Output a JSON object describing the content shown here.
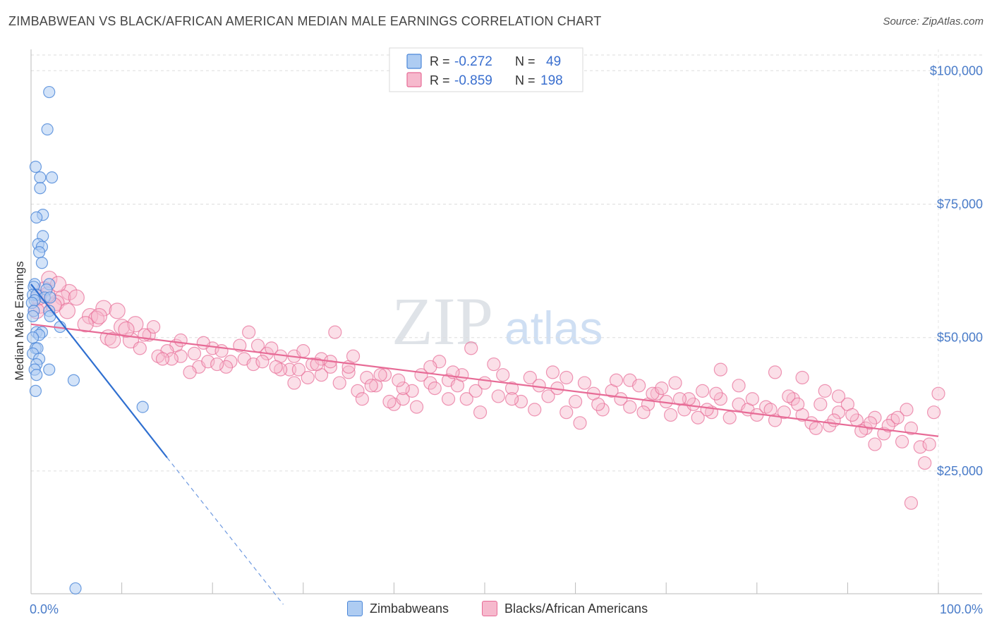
{
  "header": {
    "title": "ZIMBABWEAN VS BLACK/AFRICAN AMERICAN MEDIAN MALE EARNINGS CORRELATION CHART",
    "source": "Source: ZipAtlas.com"
  },
  "watermark": "ZIPatlas",
  "legend": {
    "rows": [
      {
        "r_label": "R = ",
        "r_value": "-0.272",
        "n_label": "N = ",
        "n_value": "49"
      },
      {
        "r_label": "R = ",
        "r_value": "-0.859",
        "n_label": "N = ",
        "n_value": "198"
      }
    ]
  },
  "bottom_legend": {
    "items": [
      "Zimbabweans",
      "Blacks/African Americans"
    ]
  },
  "chart_data": {
    "type": "scatter",
    "ylabel": "Median Male Earnings",
    "xlabel": "",
    "x_tick_labels": [
      "0.0%",
      "100.0%"
    ],
    "y_tick_labels": [
      "$25,000",
      "$50,000",
      "$75,000",
      "$100,000"
    ],
    "y_ticks": [
      25000,
      50000,
      75000,
      100000
    ],
    "xlim": [
      0,
      100
    ],
    "ylim": [
      2000,
      104000
    ],
    "grid": true,
    "colors": {
      "zimbabweans": "#4a86d8",
      "zimbabweans_fill": "#aeccf2",
      "blacks": "#e76b96",
      "blacks_fill": "#f6b9cd"
    },
    "series": [
      {
        "name": "Zimbabweans",
        "trend": {
          "x0": 0,
          "y0": 60000,
          "x1": 15,
          "y1": 27500,
          "dash_to_x": 27.8,
          "dash_to_y": 0
        },
        "points": [
          [
            2.0,
            96000
          ],
          [
            1.8,
            89000
          ],
          [
            0.5,
            82000
          ],
          [
            1.0,
            80000
          ],
          [
            2.3,
            80000
          ],
          [
            1.0,
            78000
          ],
          [
            1.3,
            73000
          ],
          [
            0.6,
            72500
          ],
          [
            1.3,
            69000
          ],
          [
            0.8,
            67500
          ],
          [
            1.2,
            67000
          ],
          [
            0.9,
            66000
          ],
          [
            1.2,
            64000
          ],
          [
            0.4,
            60000
          ],
          [
            2.0,
            60000
          ],
          [
            0.3,
            59500
          ],
          [
            1.7,
            59000
          ],
          [
            0.2,
            58000
          ],
          [
            0.6,
            58000
          ],
          [
            1.5,
            57500
          ],
          [
            0.4,
            57000
          ],
          [
            0.1,
            56500
          ],
          [
            2.1,
            57500
          ],
          [
            0.3,
            55000
          ],
          [
            2.0,
            55000
          ],
          [
            0.2,
            54000
          ],
          [
            2.1,
            54000
          ],
          [
            3.2,
            52000
          ],
          [
            0.6,
            51000
          ],
          [
            1.2,
            51000
          ],
          [
            0.9,
            50500
          ],
          [
            0.2,
            50000
          ],
          [
            0.5,
            48000
          ],
          [
            0.7,
            48000
          ],
          [
            0.2,
            47000
          ],
          [
            0.9,
            46000
          ],
          [
            0.6,
            45000
          ],
          [
            0.4,
            44000
          ],
          [
            2.0,
            44000
          ],
          [
            0.6,
            43000
          ],
          [
            4.7,
            42000
          ],
          [
            0.5,
            40000
          ],
          [
            12.3,
            37000
          ],
          [
            4.9,
            3000
          ]
        ]
      },
      {
        "name": "Blacks/African Americans",
        "trend": {
          "x0": 0,
          "y0": 52500,
          "x1": 100,
          "y1": 31500
        },
        "points": [
          [
            2.0,
            61000
          ],
          [
            1.5,
            59000
          ],
          [
            4.2,
            58500
          ],
          [
            3.5,
            57500
          ],
          [
            2.8,
            56500
          ],
          [
            1.0,
            56000
          ],
          [
            4.0,
            55000
          ],
          [
            8.0,
            55500
          ],
          [
            9.5,
            55000
          ],
          [
            6.5,
            54000
          ],
          [
            7.2,
            53500
          ],
          [
            6.0,
            52500
          ],
          [
            10.0,
            52000
          ],
          [
            11.5,
            52500
          ],
          [
            13.0,
            50500
          ],
          [
            8.5,
            50000
          ],
          [
            11.0,
            49500
          ],
          [
            12.0,
            48000
          ],
          [
            16.0,
            48500
          ],
          [
            15.0,
            47500
          ],
          [
            14.0,
            46500
          ],
          [
            16.5,
            46500
          ],
          [
            18.0,
            47000
          ],
          [
            18.5,
            44500
          ],
          [
            19.5,
            45500
          ],
          [
            20.0,
            48000
          ],
          [
            21.0,
            47500
          ],
          [
            22.0,
            45500
          ],
          [
            23.5,
            46000
          ],
          [
            24.5,
            45000
          ],
          [
            25.0,
            48500
          ],
          [
            26.0,
            47000
          ],
          [
            27.5,
            46500
          ],
          [
            28.5,
            44000
          ],
          [
            29.0,
            46500
          ],
          [
            30.0,
            47500
          ],
          [
            31.0,
            45000
          ],
          [
            32.0,
            43000
          ],
          [
            33.0,
            44500
          ],
          [
            34.0,
            41500
          ],
          [
            35.0,
            43500
          ],
          [
            36.0,
            40000
          ],
          [
            37.0,
            42500
          ],
          [
            38.0,
            41000
          ],
          [
            39.0,
            43000
          ],
          [
            40.0,
            37500
          ],
          [
            41.0,
            38500
          ],
          [
            42.0,
            40000
          ],
          [
            43.0,
            43000
          ],
          [
            44.0,
            41500
          ],
          [
            45.0,
            45500
          ],
          [
            46.0,
            42000
          ],
          [
            47.0,
            41000
          ],
          [
            48.0,
            38500
          ],
          [
            49.0,
            40000
          ],
          [
            50.0,
            41500
          ],
          [
            51.0,
            45000
          ],
          [
            52.0,
            43000
          ],
          [
            53.0,
            40500
          ],
          [
            54.0,
            38000
          ],
          [
            55.0,
            42500
          ],
          [
            56.0,
            41000
          ],
          [
            57.0,
            39000
          ],
          [
            58.0,
            40500
          ],
          [
            59.0,
            42500
          ],
          [
            60.0,
            38000
          ],
          [
            61.0,
            41500
          ],
          [
            62.0,
            39500
          ],
          [
            63.0,
            36500
          ],
          [
            64.0,
            40000
          ],
          [
            65.0,
            38500
          ],
          [
            66.0,
            42000
          ],
          [
            67.0,
            41000
          ],
          [
            68.0,
            37500
          ],
          [
            69.0,
            39500
          ],
          [
            70.0,
            38000
          ],
          [
            71.0,
            41500
          ],
          [
            72.0,
            36500
          ],
          [
            73.0,
            37500
          ],
          [
            74.0,
            40000
          ],
          [
            75.0,
            36000
          ],
          [
            76.0,
            38500
          ],
          [
            77.0,
            35000
          ],
          [
            78.0,
            37500
          ],
          [
            79.0,
            36500
          ],
          [
            80.0,
            35500
          ],
          [
            81.0,
            37000
          ],
          [
            82.0,
            34500
          ],
          [
            83.0,
            36000
          ],
          [
            84.0,
            38500
          ],
          [
            85.0,
            35500
          ],
          [
            86.0,
            34000
          ],
          [
            87.0,
            37500
          ],
          [
            88.0,
            33500
          ],
          [
            89.0,
            36000
          ],
          [
            90.0,
            37500
          ],
          [
            91.0,
            34500
          ],
          [
            92.0,
            33000
          ],
          [
            93.0,
            35000
          ],
          [
            94.0,
            32000
          ],
          [
            95.0,
            34500
          ],
          [
            96.0,
            30500
          ],
          [
            97.0,
            33000
          ],
          [
            98.0,
            29500
          ],
          [
            99.0,
            30000
          ],
          [
            98.5,
            26500
          ],
          [
            97.0,
            19000
          ],
          [
            99.5,
            36000
          ],
          [
            100.0,
            39500
          ],
          [
            96.5,
            36500
          ],
          [
            93.0,
            30000
          ],
          [
            91.5,
            32500
          ],
          [
            89.0,
            39000
          ],
          [
            87.5,
            40000
          ],
          [
            85.0,
            42500
          ],
          [
            83.5,
            39000
          ],
          [
            82.0,
            43500
          ],
          [
            79.5,
            38500
          ],
          [
            78.0,
            41000
          ],
          [
            76.0,
            44000
          ],
          [
            74.5,
            36500
          ],
          [
            72.5,
            38500
          ],
          [
            70.5,
            35500
          ],
          [
            68.5,
            39500
          ],
          [
            66.0,
            37000
          ],
          [
            64.5,
            42000
          ],
          [
            62.5,
            37500
          ],
          [
            60.5,
            34000
          ],
          [
            59.0,
            36000
          ],
          [
            57.5,
            43500
          ],
          [
            55.5,
            36500
          ],
          [
            53.0,
            38500
          ],
          [
            51.5,
            39000
          ],
          [
            49.5,
            36000
          ],
          [
            47.5,
            43000
          ],
          [
            46.0,
            38500
          ],
          [
            44.5,
            40500
          ],
          [
            42.5,
            37000
          ],
          [
            41.0,
            40500
          ],
          [
            39.5,
            38000
          ],
          [
            37.5,
            41000
          ],
          [
            36.5,
            38500
          ],
          [
            35.0,
            44500
          ],
          [
            33.5,
            51000
          ],
          [
            32.0,
            46000
          ],
          [
            30.5,
            42500
          ],
          [
            29.0,
            41500
          ],
          [
            27.5,
            44000
          ],
          [
            26.5,
            48000
          ],
          [
            25.5,
            45500
          ],
          [
            24.0,
            51000
          ],
          [
            23.0,
            48500
          ],
          [
            21.5,
            44500
          ],
          [
            20.5,
            45000
          ],
          [
            19.0,
            49000
          ],
          [
            17.5,
            43500
          ],
          [
            16.5,
            49500
          ],
          [
            15.5,
            46000
          ],
          [
            14.5,
            46000
          ],
          [
            13.5,
            52000
          ],
          [
            12.5,
            50500
          ],
          [
            10.5,
            51500
          ],
          [
            9.0,
            49500
          ],
          [
            7.5,
            54000
          ],
          [
            5.0,
            57500
          ],
          [
            3.0,
            60000
          ],
          [
            2.5,
            56000
          ],
          [
            1.8,
            58000
          ],
          [
            0.8,
            57500
          ],
          [
            0.6,
            55000
          ],
          [
            48.5,
            48000
          ],
          [
            46.5,
            43500
          ],
          [
            44.0,
            44500
          ],
          [
            40.5,
            42000
          ],
          [
            38.5,
            43000
          ],
          [
            35.5,
            46500
          ],
          [
            33.0,
            45500
          ],
          [
            31.5,
            45000
          ],
          [
            29.5,
            44000
          ],
          [
            27.0,
            44500
          ],
          [
            81.5,
            36500
          ],
          [
            84.5,
            37500
          ],
          [
            86.5,
            33000
          ],
          [
            88.5,
            34500
          ],
          [
            90.5,
            35500
          ],
          [
            92.5,
            34000
          ],
          [
            94.5,
            33500
          ],
          [
            95.5,
            35000
          ],
          [
            75.5,
            39500
          ],
          [
            73.5,
            35000
          ],
          [
            71.5,
            38500
          ],
          [
            69.5,
            40500
          ],
          [
            67.5,
            36000
          ]
        ]
      }
    ]
  }
}
